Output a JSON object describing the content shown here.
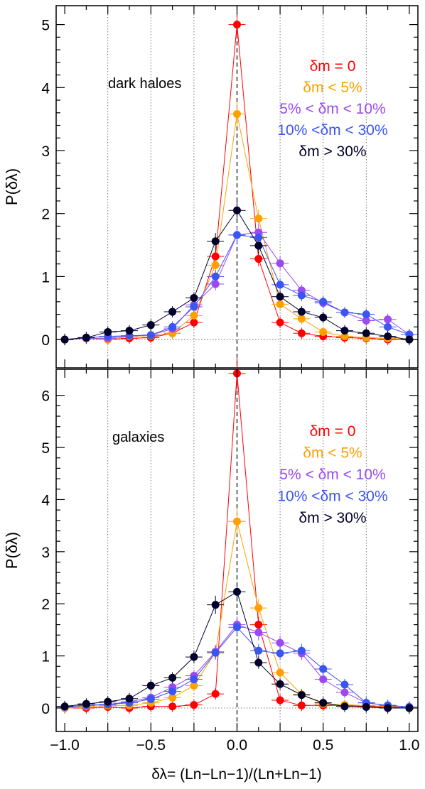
{
  "chart_data": [
    {
      "type": "line",
      "panel_label": "dark haloes",
      "ylabel": "P(δλ)",
      "xlim": [
        -1.05,
        1.05
      ],
      "ylim": [
        -0.45,
        5.3
      ],
      "yticks": [
        "0",
        "1",
        "2",
        "3",
        "4",
        "5"
      ],
      "x": [
        -1.0,
        -0.875,
        -0.75,
        -0.625,
        -0.5,
        -0.375,
        -0.25,
        -0.125,
        0.0,
        0.125,
        0.25,
        0.375,
        0.5,
        0.625,
        0.75,
        0.875,
        1.0
      ],
      "series": [
        {
          "name": "δm = 0",
          "color": "#ff0000",
          "values": [
            0.0,
            0.02,
            0.0,
            0.02,
            0.03,
            0.1,
            0.27,
            1.32,
            5.0,
            1.28,
            0.27,
            0.1,
            0.05,
            0.03,
            0.02,
            0.0,
            0.0
          ]
        },
        {
          "name": "δm < 5%",
          "color": "#ffa000",
          "values": [
            0.0,
            0.03,
            0.0,
            0.05,
            0.06,
            0.1,
            0.38,
            1.18,
            3.58,
            1.92,
            0.56,
            0.33,
            0.12,
            0.05,
            0.03,
            0.02,
            0.0
          ]
        },
        {
          "name": "5% < δm < 10%",
          "color": "#9a4af0",
          "values": [
            0.0,
            0.02,
            0.02,
            0.06,
            0.07,
            0.17,
            0.55,
            0.88,
            1.66,
            1.7,
            1.21,
            0.78,
            0.58,
            0.43,
            0.3,
            0.32,
            0.08
          ]
        },
        {
          "name": "10% <δm < 30%",
          "color": "#3a55f0",
          "values": [
            0.0,
            0.03,
            0.05,
            0.06,
            0.07,
            0.2,
            0.52,
            1.0,
            1.66,
            1.62,
            0.87,
            0.7,
            0.6,
            0.43,
            0.4,
            0.2,
            0.08
          ]
        },
        {
          "name": "δm > 30%",
          "color": "#00002a",
          "values": [
            0.0,
            0.03,
            0.12,
            0.14,
            0.23,
            0.44,
            0.66,
            1.56,
            2.05,
            1.49,
            0.68,
            0.44,
            0.35,
            0.14,
            0.1,
            0.05,
            0.0
          ]
        }
      ]
    },
    {
      "type": "line",
      "panel_label": "galaxies",
      "ylabel": "P(δλ)",
      "xlabel": "δλ=  (Ln−Ln−1)/(Ln+Ln−1)",
      "xlim": [
        -1.05,
        1.05
      ],
      "ylim": [
        -0.45,
        6.5
      ],
      "yticks": [
        "0",
        "1",
        "2",
        "3",
        "4",
        "5",
        "6"
      ],
      "xticks": [
        "−1.0",
        "−0.5",
        "0.0",
        "0.5",
        "1.0"
      ],
      "x": [
        -1.0,
        -0.875,
        -0.75,
        -0.625,
        -0.5,
        -0.375,
        -0.25,
        -0.125,
        0.0,
        0.125,
        0.25,
        0.375,
        0.5,
        0.625,
        0.75,
        0.875,
        1.0
      ],
      "series": [
        {
          "name": "δm = 0",
          "color": "#ff0000",
          "values": [
            0.0,
            0.0,
            0.02,
            0.0,
            0.03,
            0.03,
            0.06,
            0.27,
            6.42,
            1.6,
            0.15,
            0.05,
            0.05,
            0.05,
            0.03,
            0.02,
            0.0
          ]
        },
        {
          "name": "δm < 5%",
          "color": "#ffa000",
          "values": [
            0.0,
            0.03,
            0.05,
            0.05,
            0.1,
            0.2,
            0.43,
            1.07,
            3.58,
            1.92,
            0.68,
            0.26,
            0.08,
            0.06,
            0.05,
            0.03,
            0.02
          ]
        },
        {
          "name": "5% < δm < 10%",
          "color": "#9a4af0",
          "values": [
            0.02,
            0.05,
            0.07,
            0.12,
            0.2,
            0.4,
            0.62,
            1.08,
            1.6,
            1.45,
            1.25,
            1.05,
            0.55,
            0.3,
            0.1,
            0.05,
            0.02
          ]
        },
        {
          "name": "10% <δm < 30%",
          "color": "#3a55f0",
          "values": [
            0.02,
            0.05,
            0.07,
            0.1,
            0.17,
            0.32,
            0.55,
            1.06,
            1.55,
            1.1,
            1.05,
            1.1,
            0.75,
            0.45,
            0.1,
            0.05,
            0.02
          ]
        },
        {
          "name": "δm > 30%",
          "color": "#00002a",
          "values": [
            0.03,
            0.08,
            0.12,
            0.18,
            0.43,
            0.58,
            0.98,
            1.98,
            2.23,
            0.87,
            0.46,
            0.25,
            0.1,
            0.03,
            0.02,
            0.0,
            0.0
          ]
        }
      ]
    }
  ]
}
